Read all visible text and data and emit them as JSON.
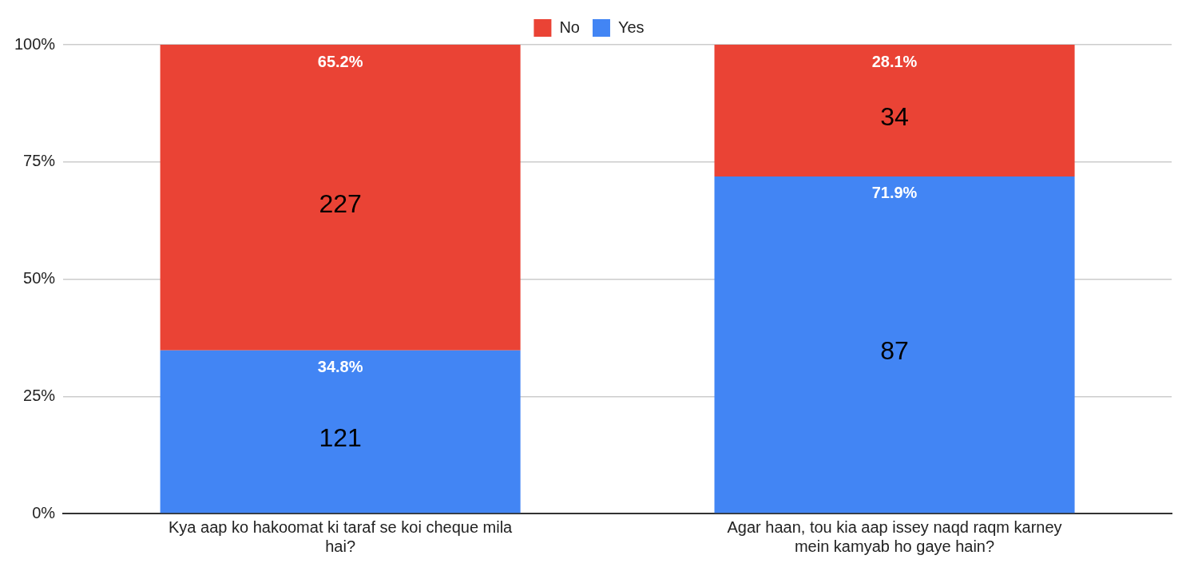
{
  "chart_data": {
    "type": "bar",
    "stacked": true,
    "categories": [
      "Kya aap ko hakoomat ki taraf se koi cheque mila hai?",
      "Agar haan, tou kia aap issey naqd raqm karney mein kamyab ho gaye hain?"
    ],
    "series": [
      {
        "name": "Yes",
        "color": "#4285f4",
        "values": [
          34.8,
          71.9
        ],
        "value_labels": [
          "34.8%",
          "71.9%"
        ]
      },
      {
        "name": "No",
        "color": "#ea4335",
        "values": [
          65.2,
          28.1
        ],
        "value_labels": [
          "65.2%",
          "28.1%"
        ]
      }
    ],
    "ylim": [
      0,
      100
    ],
    "yticks": [
      {
        "value": 0,
        "label": "0%"
      },
      {
        "value": 25,
        "label": "25%"
      },
      {
        "value": 50,
        "label": "50%"
      },
      {
        "value": 75,
        "label": "75%"
      },
      {
        "value": 100,
        "label": "100%"
      }
    ],
    "grid": "y",
    "legend": "top",
    "annotations": [
      "121",
      "227",
      "87",
      "34"
    ]
  }
}
